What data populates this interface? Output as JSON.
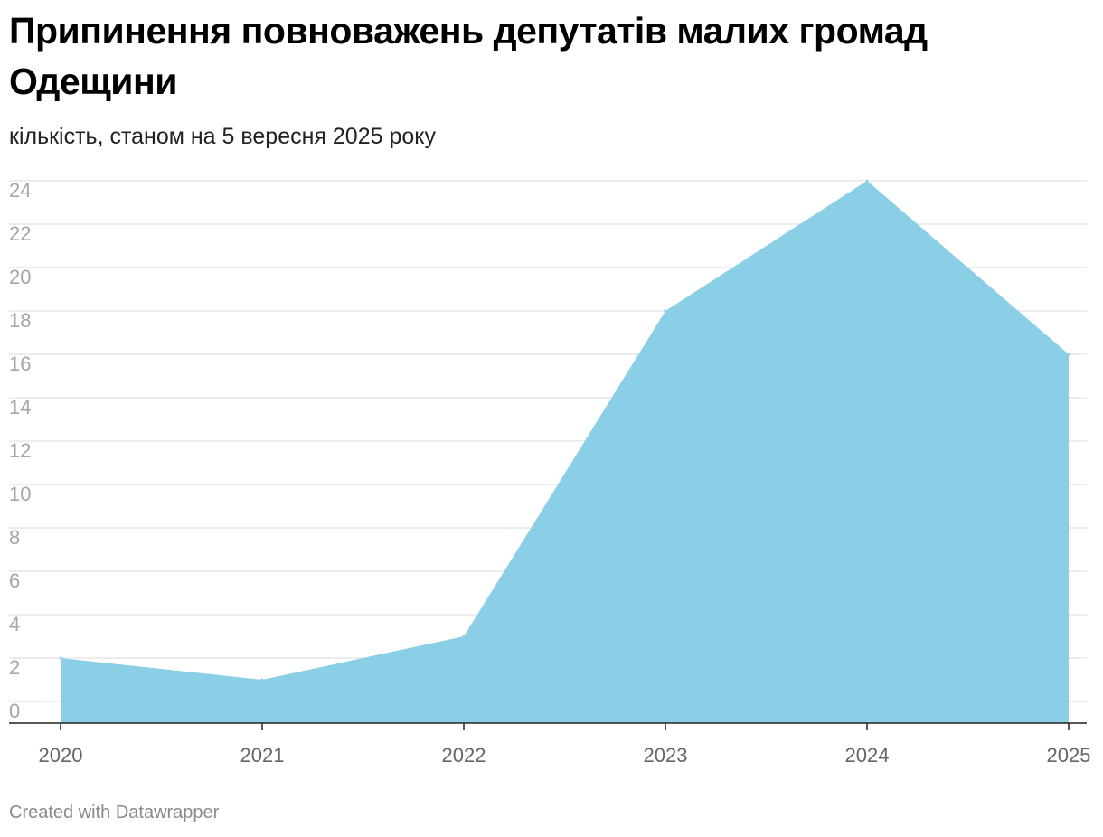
{
  "title": "Припинення повноважень депутатів малих громад Одещини",
  "subtitle": "кількість, станом на 5 вересня 2025 року",
  "footer": "Created with Datawrapper",
  "colors": {
    "area": "#8ACFE6",
    "grid": "#e2e2e2",
    "axis": "#222222"
  },
  "chart_data": {
    "type": "area",
    "title": "Припинення повноважень депутатів малих громад Одещини",
    "subtitle": "кількість, станом на 5 вересня 2025 року",
    "categories": [
      "2020",
      "2021",
      "2022",
      "2023",
      "2024",
      "2025"
    ],
    "values": [
      3,
      2,
      4,
      19,
      25,
      17
    ],
    "xlabel": "",
    "ylabel": "",
    "ylim": [
      0,
      25
    ],
    "yticks": [
      0,
      2,
      4,
      6,
      8,
      10,
      12,
      14,
      16,
      18,
      20,
      22,
      24
    ],
    "grid": true,
    "legend": "none"
  }
}
